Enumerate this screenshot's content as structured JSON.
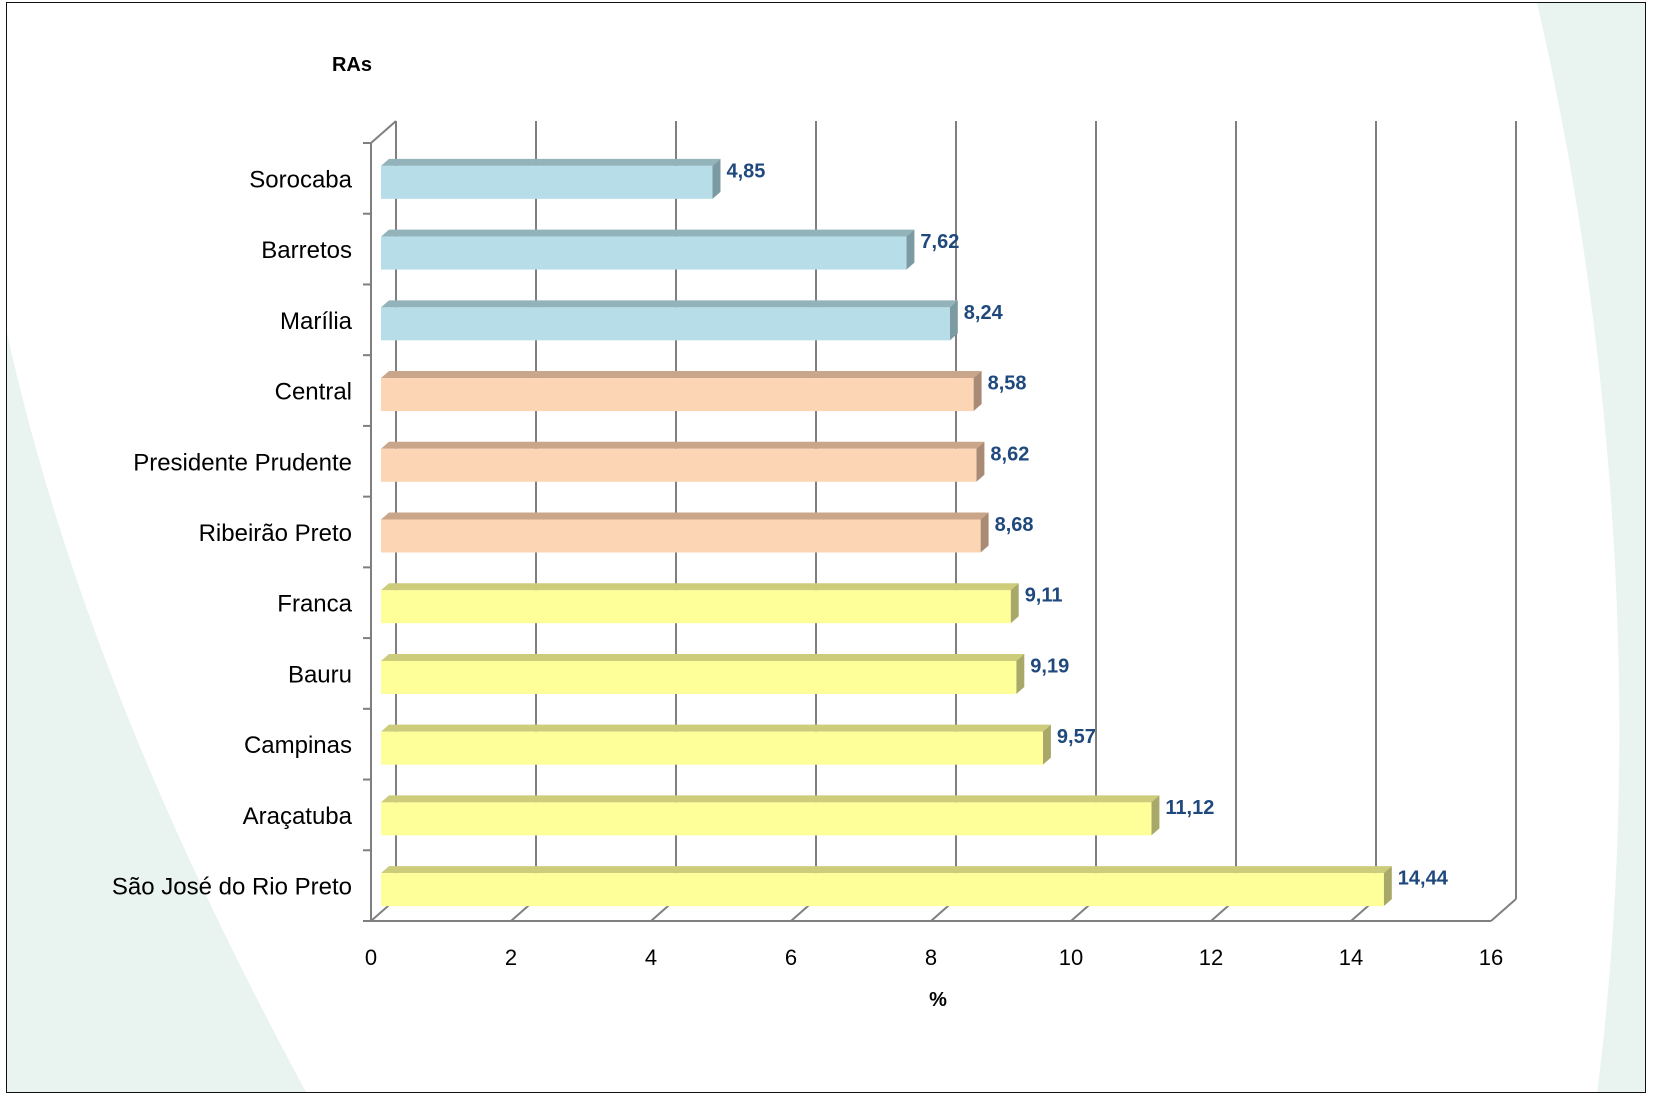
{
  "chart_data": {
    "type": "bar",
    "orientation": "horizontal",
    "style": "3d-clustered-bar",
    "y_axis_title": "RAs",
    "x_axis_title": "%",
    "xlim": [
      0,
      16
    ],
    "x_ticks": [
      0,
      2,
      4,
      6,
      8,
      10,
      12,
      14,
      16
    ],
    "grid": "vertical-major",
    "legend": "none",
    "categories": [
      "Sorocaba",
      "Barretos",
      "Marília",
      "Central",
      "Presidente Prudente",
      "Ribeirão Preto",
      "Franca",
      "Bauru",
      "Campinas",
      "Araçatuba",
      "São José do Rio Preto"
    ],
    "values": [
      4.85,
      7.62,
      8.24,
      8.58,
      8.62,
      8.68,
      9.11,
      9.19,
      9.57,
      11.12,
      14.44
    ],
    "value_labels": [
      "4,85",
      "7,62",
      "8,24",
      "8,58",
      "8,62",
      "8,68",
      "9,11",
      "9,19",
      "9,57",
      "11,12",
      "14,44"
    ],
    "bar_groups": [
      "blue",
      "blue",
      "blue",
      "salmon",
      "salmon",
      "salmon",
      "yellow",
      "yellow",
      "yellow",
      "yellow",
      "yellow"
    ],
    "colors": {
      "blue": {
        "front": "#b7dee8",
        "top": "#93b3bb",
        "side": "#7b9aa2"
      },
      "salmon": {
        "front": "#fcd5b4",
        "top": "#c9a58a",
        "side": "#a98a74"
      },
      "yellow": {
        "front": "#ffff99",
        "top": "#cccc7a",
        "side": "#a8a868"
      },
      "data_label": "#1f497d",
      "gridline": "#7f7f7f"
    }
  }
}
